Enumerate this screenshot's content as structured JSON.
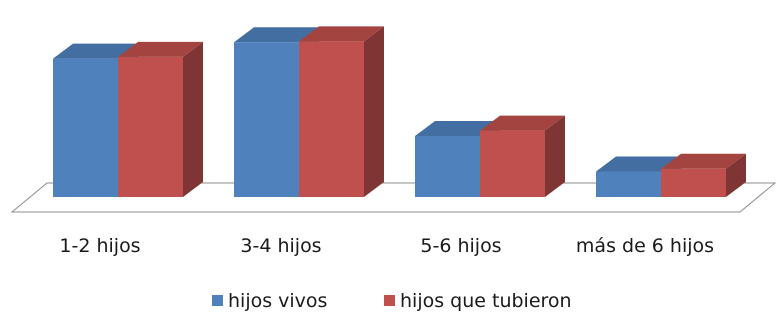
{
  "chart_data": {
    "type": "bar",
    "style": "3d-clustered-column",
    "categories": [
      "1-2 hijos",
      "3-4 hijos",
      "5-6 hijos",
      "más de 6 hijos"
    ],
    "series": [
      {
        "name": "hijos vivos",
        "color": "#4f81bd",
        "values": [
          152,
          170,
          67,
          28
        ]
      },
      {
        "name": "hijos que tubieron",
        "color": "#c0504d",
        "values": [
          154,
          171,
          73,
          31
        ]
      }
    ],
    "title": "",
    "xlabel": "",
    "ylabel": "",
    "ylim": [
      0,
      180
    ],
    "grid": false,
    "legend_position": "bottom"
  }
}
